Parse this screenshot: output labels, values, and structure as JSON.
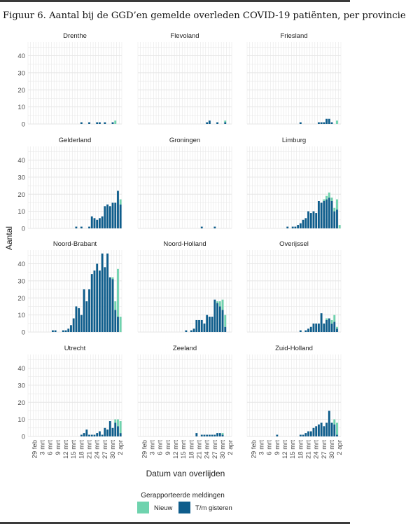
{
  "caption": "Figuur 6. Aantal bij de GGD’en gemelde overleden COVID-19 patiënten, per provincie",
  "colors": {
    "nieuw": "#6fd3ae",
    "gisteren": "#0e5d8c",
    "grid": "#e6e6e6",
    "text": "#333333"
  },
  "chart_data": {
    "type": "bar",
    "stacked": true,
    "layout": "facets 4 rows x 3 columns",
    "xlabel": "Datum van overlijden",
    "ylabel": "Aantal",
    "ylim": [
      0,
      48
    ],
    "yticks": [
      0,
      10,
      20,
      30,
      40
    ],
    "xlim": [
      "2020-02-27",
      "2020-04-03"
    ],
    "x_ticks": [
      "29 feb",
      "3 mrt",
      "6 mrt",
      "9 mrt",
      "12 mrt",
      "15 mrt",
      "18 mrt",
      "21 mrt",
      "24 mrt",
      "27 mrt",
      "30 mrt",
      "2 apr"
    ],
    "x": [
      "2020-02-27",
      "2020-02-28",
      "2020-02-29",
      "2020-03-01",
      "2020-03-02",
      "2020-03-03",
      "2020-03-04",
      "2020-03-05",
      "2020-03-06",
      "2020-03-07",
      "2020-03-08",
      "2020-03-09",
      "2020-03-10",
      "2020-03-11",
      "2020-03-12",
      "2020-03-13",
      "2020-03-14",
      "2020-03-15",
      "2020-03-16",
      "2020-03-17",
      "2020-03-18",
      "2020-03-19",
      "2020-03-20",
      "2020-03-21",
      "2020-03-22",
      "2020-03-23",
      "2020-03-24",
      "2020-03-25",
      "2020-03-26",
      "2020-03-27",
      "2020-03-28",
      "2020-03-29",
      "2020-03-30",
      "2020-03-31",
      "2020-04-01",
      "2020-04-02"
    ],
    "legend": {
      "title": "Gerapporteerde meldingen",
      "position": "bottom",
      "items": [
        {
          "label": "Nieuw"
        },
        {
          "label": "T/m gisteren"
        }
      ]
    },
    "grid": true,
    "panels": [
      {
        "name": "Drenthe",
        "tm_gisteren": [
          0,
          0,
          0,
          0,
          0,
          0,
          0,
          0,
          0,
          0,
          0,
          0,
          0,
          0,
          0,
          0,
          0,
          0,
          0,
          0,
          1,
          0,
          0,
          1,
          0,
          0,
          1,
          1,
          0,
          1,
          0,
          0,
          1,
          0,
          0,
          0
        ],
        "nieuw": [
          0,
          0,
          0,
          0,
          0,
          0,
          0,
          0,
          0,
          0,
          0,
          0,
          0,
          0,
          0,
          0,
          0,
          0,
          0,
          0,
          0,
          0,
          0,
          0,
          0,
          0,
          0,
          0,
          0,
          0,
          0,
          0,
          0,
          2,
          0,
          0
        ]
      },
      {
        "name": "Flevoland",
        "tm_gisteren": [
          0,
          0,
          0,
          0,
          0,
          0,
          0,
          0,
          0,
          0,
          0,
          0,
          0,
          0,
          0,
          0,
          0,
          0,
          0,
          0,
          0,
          0,
          0,
          0,
          0,
          0,
          1,
          2,
          0,
          0,
          1,
          0,
          0,
          1,
          0,
          0
        ],
        "nieuw": [
          0,
          0,
          0,
          0,
          0,
          0,
          0,
          0,
          0,
          0,
          0,
          0,
          0,
          0,
          0,
          0,
          0,
          0,
          0,
          0,
          0,
          0,
          0,
          0,
          0,
          0,
          0,
          0,
          0,
          0,
          0,
          0,
          0,
          1,
          0,
          0
        ]
      },
      {
        "name": "Friesland",
        "tm_gisteren": [
          0,
          0,
          0,
          0,
          0,
          0,
          0,
          0,
          0,
          0,
          0,
          0,
          0,
          0,
          0,
          0,
          0,
          0,
          0,
          0,
          1,
          0,
          0,
          0,
          0,
          0,
          0,
          1,
          1,
          1,
          3,
          3,
          1,
          0,
          0,
          0
        ],
        "nieuw": [
          0,
          0,
          0,
          0,
          0,
          0,
          0,
          0,
          0,
          0,
          0,
          0,
          0,
          0,
          0,
          0,
          0,
          0,
          0,
          0,
          0,
          0,
          0,
          0,
          0,
          0,
          0,
          0,
          0,
          0,
          0,
          0,
          0,
          0,
          2,
          0
        ]
      },
      {
        "name": "Gelderland",
        "tm_gisteren": [
          0,
          0,
          0,
          0,
          0,
          0,
          0,
          0,
          0,
          0,
          0,
          0,
          0,
          0,
          0,
          0,
          0,
          0,
          1,
          0,
          1,
          0,
          0,
          1,
          7,
          6,
          5,
          6,
          7,
          13,
          14,
          13,
          15,
          15,
          22,
          14
        ],
        "nieuw": [
          0,
          0,
          0,
          0,
          0,
          0,
          0,
          0,
          0,
          0,
          0,
          0,
          0,
          0,
          0,
          0,
          0,
          0,
          0,
          0,
          0,
          0,
          0,
          0,
          0,
          0,
          0,
          0,
          0,
          0,
          0,
          0,
          0,
          0,
          0,
          3
        ]
      },
      {
        "name": "Groningen",
        "tm_gisteren": [
          0,
          0,
          0,
          0,
          0,
          0,
          0,
          0,
          0,
          0,
          0,
          0,
          0,
          0,
          0,
          0,
          0,
          0,
          0,
          0,
          0,
          0,
          0,
          0,
          1,
          0,
          0,
          0,
          0,
          1,
          0,
          0,
          0,
          0,
          0,
          0
        ],
        "nieuw": [
          0,
          0,
          0,
          0,
          0,
          0,
          0,
          0,
          0,
          0,
          0,
          0,
          0,
          0,
          0,
          0,
          0,
          0,
          0,
          0,
          0,
          0,
          0,
          0,
          0,
          0,
          0,
          0,
          0,
          0,
          0,
          0,
          0,
          0,
          0,
          0
        ]
      },
      {
        "name": "Limburg",
        "tm_gisteren": [
          0,
          0,
          0,
          0,
          0,
          0,
          0,
          0,
          0,
          0,
          0,
          0,
          0,
          0,
          0,
          1,
          0,
          1,
          1,
          2,
          3,
          5,
          6,
          10,
          9,
          10,
          9,
          16,
          15,
          16,
          17,
          18,
          16,
          10,
          11,
          0
        ],
        "nieuw": [
          0,
          0,
          0,
          0,
          0,
          0,
          0,
          0,
          0,
          0,
          0,
          0,
          0,
          0,
          0,
          0,
          0,
          0,
          0,
          0,
          0,
          0,
          0,
          0,
          0,
          0,
          0,
          0,
          0,
          1,
          2,
          3,
          2,
          2,
          6,
          2
        ]
      },
      {
        "name": "Noord-Brabant",
        "tm_gisteren": [
          0,
          0,
          0,
          0,
          0,
          0,
          0,
          0,
          0,
          1,
          1,
          0,
          0,
          1,
          1,
          2,
          4,
          8,
          15,
          14,
          10,
          25,
          18,
          25,
          34,
          36,
          40,
          36,
          46,
          38,
          46,
          32,
          31,
          13,
          9,
          0
        ],
        "nieuw": [
          0,
          0,
          0,
          0,
          0,
          0,
          0,
          0,
          0,
          0,
          0,
          0,
          0,
          0,
          0,
          0,
          0,
          0,
          0,
          0,
          0,
          0,
          0,
          0,
          0,
          0,
          0,
          0,
          0,
          0,
          0,
          0,
          1,
          5,
          28,
          9
        ]
      },
      {
        "name": "Noord-Holland",
        "tm_gisteren": [
          0,
          0,
          0,
          0,
          0,
          0,
          0,
          0,
          0,
          0,
          0,
          0,
          0,
          0,
          0,
          0,
          0,
          0,
          1,
          0,
          1,
          2,
          7,
          7,
          7,
          5,
          10,
          9,
          9,
          19,
          17,
          15,
          13,
          3,
          0,
          0
        ],
        "nieuw": [
          0,
          0,
          0,
          0,
          0,
          0,
          0,
          0,
          0,
          0,
          0,
          0,
          0,
          0,
          0,
          0,
          0,
          0,
          0,
          0,
          0,
          0,
          0,
          0,
          0,
          0,
          0,
          0,
          0,
          0,
          1,
          3,
          6,
          7,
          0,
          0
        ]
      },
      {
        "name": "Overijssel",
        "tm_gisteren": [
          0,
          0,
          0,
          0,
          0,
          0,
          0,
          0,
          0,
          0,
          0,
          0,
          0,
          0,
          0,
          0,
          0,
          0,
          0,
          0,
          1,
          0,
          1,
          2,
          3,
          5,
          5,
          5,
          11,
          5,
          7,
          8,
          5,
          6,
          2,
          0
        ],
        "nieuw": [
          0,
          0,
          0,
          0,
          0,
          0,
          0,
          0,
          0,
          0,
          0,
          0,
          0,
          0,
          0,
          0,
          0,
          0,
          0,
          0,
          0,
          0,
          0,
          0,
          0,
          0,
          0,
          0,
          0,
          0,
          1,
          0,
          2,
          4,
          1,
          0
        ]
      },
      {
        "name": "Utrecht",
        "tm_gisteren": [
          0,
          0,
          0,
          0,
          0,
          0,
          0,
          0,
          0,
          0,
          0,
          0,
          0,
          0,
          0,
          0,
          0,
          0,
          0,
          0,
          1,
          2,
          4,
          1,
          1,
          1,
          2,
          3,
          1,
          5,
          4,
          9,
          5,
          8,
          6,
          2
        ],
        "nieuw": [
          0,
          0,
          0,
          0,
          0,
          0,
          0,
          0,
          0,
          0,
          0,
          0,
          0,
          0,
          0,
          0,
          0,
          0,
          0,
          0,
          0,
          0,
          0,
          0,
          0,
          0,
          0,
          0,
          0,
          0,
          0,
          0,
          0,
          2,
          4,
          7
        ]
      },
      {
        "name": "Zeeland",
        "tm_gisteren": [
          0,
          0,
          0,
          0,
          0,
          0,
          0,
          0,
          0,
          0,
          0,
          0,
          0,
          0,
          0,
          0,
          0,
          0,
          0,
          0,
          0,
          0,
          2,
          0,
          1,
          1,
          1,
          1,
          1,
          1,
          2,
          2,
          1,
          0,
          0,
          0
        ],
        "nieuw": [
          0,
          0,
          0,
          0,
          0,
          0,
          0,
          0,
          0,
          0,
          0,
          0,
          0,
          0,
          0,
          0,
          0,
          0,
          0,
          0,
          0,
          0,
          0,
          0,
          0,
          0,
          0,
          0,
          0,
          0,
          0,
          0,
          1,
          0,
          0,
          0
        ]
      },
      {
        "name": "Zuid-Holland",
        "tm_gisteren": [
          0,
          0,
          0,
          0,
          0,
          0,
          0,
          0,
          0,
          0,
          0,
          1,
          0,
          0,
          0,
          0,
          0,
          0,
          0,
          0,
          1,
          1,
          2,
          3,
          3,
          5,
          6,
          7,
          8,
          6,
          8,
          15,
          8,
          7,
          1,
          0
        ],
        "nieuw": [
          0,
          0,
          0,
          0,
          0,
          0,
          0,
          0,
          0,
          0,
          0,
          0,
          0,
          0,
          0,
          0,
          0,
          0,
          0,
          0,
          0,
          0,
          0,
          0,
          0,
          0,
          0,
          0,
          0,
          0,
          0,
          0,
          0,
          3,
          7,
          0
        ]
      }
    ]
  }
}
